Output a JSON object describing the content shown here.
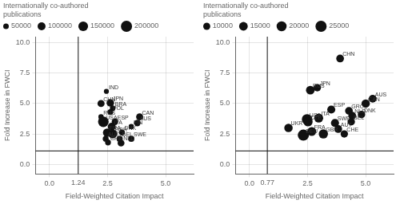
{
  "chart_data": [
    {
      "type": "bubble",
      "x_label": "Field-Weighted Citation Impact",
      "y_label": "Fold Increase in FWCI",
      "xlim": [
        -0.6,
        6.2
      ],
      "ylim": [
        -0.8,
        10.5
      ],
      "xticks": [
        {
          "value": 0.0,
          "label": "0.0"
        },
        2.5,
        {
          "value": 5.0,
          "label": "5.0"
        }
      ],
      "yticks": [
        {
          "value": 0.0,
          "label": "0.0"
        },
        2.5,
        {
          "value": 5.0,
          "label": "5.0"
        },
        7.5,
        {
          "value": 10.0,
          "label": "10.0"
        }
      ],
      "grid": true,
      "color": "#111111",
      "reference_lines": [
        {
          "axis": "x",
          "value": 1.24,
          "label": "1.24",
          "color": "#111111"
        },
        {
          "axis": "y",
          "value": 1.1,
          "color": "#111111"
        }
      ],
      "size_legend": {
        "title": [
          "Internationally co-authored",
          "publications"
        ],
        "sizes": [
          50000,
          100000,
          150000,
          200000
        ]
      },
      "points": [
        {
          "label": "IND",
          "x": 2.45,
          "y": 6.0,
          "size": 40000
        },
        {
          "label": "CHN",
          "x": 2.22,
          "y": 5.0,
          "size": 80000
        },
        {
          "label": "JPN",
          "x": 2.62,
          "y": 5.05,
          "size": 90000
        },
        {
          "label": "BRA",
          "x": 2.72,
          "y": 4.62,
          "size": 50000
        },
        {
          "label": "POL",
          "x": 2.62,
          "y": 4.3,
          "size": 55000
        },
        {
          "label": "RUS",
          "x": 2.22,
          "y": 3.9,
          "size": 45000
        },
        {
          "label": "USA",
          "x": 2.32,
          "y": 3.5,
          "size": 180000
        },
        {
          "label": "ESP",
          "x": 2.82,
          "y": 3.5,
          "size": 70000
        },
        {
          "label": "ITA",
          "x": 2.68,
          "y": 3.1,
          "size": 100000
        },
        {
          "label": "CAN",
          "x": 3.88,
          "y": 3.9,
          "size": 80000
        },
        {
          "label": "AUS",
          "x": 3.78,
          "y": 3.4,
          "size": 70000
        },
        {
          "label": "FIN",
          "x": 3.52,
          "y": 3.1,
          "size": 45000
        },
        {
          "label": "FRA",
          "x": 2.48,
          "y": 2.6,
          "size": 110000
        },
        {
          "label": "GBR",
          "x": 2.72,
          "y": 2.5,
          "size": 130000
        },
        {
          "label": "DNK",
          "x": 3.12,
          "y": 2.62,
          "size": 55000
        },
        {
          "label": "AUT",
          "x": 2.42,
          "y": 2.1,
          "size": 55000
        },
        {
          "label": "BEL",
          "x": 3.02,
          "y": 2.1,
          "size": 60000
        },
        {
          "label": "SWE",
          "x": 3.52,
          "y": 2.1,
          "size": 60000
        },
        {
          "label": "CHE",
          "x": 2.52,
          "y": 1.8,
          "size": 55000
        },
        {
          "label": "NLD",
          "x": 3.08,
          "y": 1.75,
          "size": 75000
        }
      ]
    },
    {
      "type": "bubble",
      "x_label": "Field-Weighted Citation Impact",
      "y_label": "Fold Increase in FWCI",
      "xlim": [
        -0.6,
        6.2
      ],
      "ylim": [
        -0.8,
        10.5
      ],
      "xticks": [
        {
          "value": 0.0,
          "label": "0.0"
        },
        2.5,
        {
          "value": 5.0,
          "label": "5.0"
        }
      ],
      "yticks": [
        {
          "value": 0.0,
          "label": "0.0"
        },
        2.5,
        {
          "value": 5.0,
          "label": "5.0"
        },
        7.5,
        {
          "value": 10.0,
          "label": "10.0"
        }
      ],
      "grid": true,
      "color": "#111111",
      "reference_lines": [
        {
          "axis": "x",
          "value": 0.77,
          "label": "0.77",
          "color": "#111111"
        },
        {
          "axis": "y",
          "value": 1.1,
          "color": "#111111"
        }
      ],
      "size_legend": {
        "title": [
          "Internationally co-authored",
          "publications"
        ],
        "sizes": [
          10000,
          15000,
          20000,
          25000
        ]
      },
      "points": [
        {
          "label": "CHN",
          "x": 3.9,
          "y": 8.7,
          "size": 12000
        },
        {
          "label": "RUS",
          "x": 2.62,
          "y": 6.1,
          "size": 15000
        },
        {
          "label": "JPN",
          "x": 2.92,
          "y": 6.3,
          "size": 11000
        },
        {
          "label": "AUS",
          "x": 5.3,
          "y": 5.4,
          "size": 12000
        },
        {
          "label": "CAN",
          "x": 5.0,
          "y": 5.0,
          "size": 14000
        },
        {
          "label": "ESP",
          "x": 3.52,
          "y": 4.5,
          "size": 13000
        },
        {
          "label": "GRC",
          "x": 4.28,
          "y": 4.4,
          "size": 12000
        },
        {
          "label": "NLD",
          "x": 4.42,
          "y": 4.0,
          "size": 12000
        },
        {
          "label": "DNK",
          "x": 4.82,
          "y": 4.1,
          "size": 11000
        },
        {
          "label": "USA",
          "x": 2.48,
          "y": 3.7,
          "size": 22000
        },
        {
          "label": "ITA",
          "x": 2.98,
          "y": 3.8,
          "size": 16000
        },
        {
          "label": "SWE",
          "x": 3.68,
          "y": 3.4,
          "size": 13000
        },
        {
          "label": "BEL",
          "x": 4.38,
          "y": 3.5,
          "size": 11000
        },
        {
          "label": "CZE",
          "x": 2.52,
          "y": 3.5,
          "size": 17000
        },
        {
          "label": "UKR",
          "x": 1.68,
          "y": 3.0,
          "size": 14000
        },
        {
          "label": "DEU",
          "x": 2.32,
          "y": 2.4,
          "size": 25000
        },
        {
          "label": "FRA",
          "x": 2.68,
          "y": 2.7,
          "size": 16000
        },
        {
          "label": "GBR",
          "x": 3.18,
          "y": 2.5,
          "size": 17000
        },
        {
          "label": "AUT",
          "x": 3.82,
          "y": 2.9,
          "size": 12000
        },
        {
          "label": "CHE",
          "x": 4.08,
          "y": 2.5,
          "size": 11000
        }
      ]
    }
  ]
}
